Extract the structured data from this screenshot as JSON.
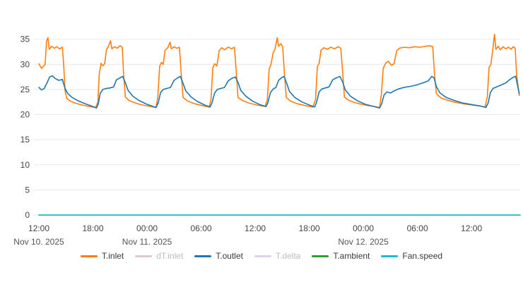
{
  "chart_data": {
    "type": "line",
    "title": "",
    "xlabel": "",
    "ylabel": "",
    "grid": true,
    "legend_position": "bottom",
    "ylim": [
      0,
      40
    ],
    "xlim": [
      0,
      53.4
    ],
    "yticks": [
      0,
      5,
      10,
      15,
      20,
      25,
      30,
      35
    ],
    "xticks": [
      {
        "t": 0,
        "label": "12:00"
      },
      {
        "t": 6,
        "label": "18:00"
      },
      {
        "t": 12,
        "label": "00:00"
      },
      {
        "t": 18,
        "label": "06:00"
      },
      {
        "t": 24,
        "label": "12:00"
      },
      {
        "t": 30,
        "label": "18:00"
      },
      {
        "t": 36,
        "label": "00:00"
      },
      {
        "t": 42,
        "label": "06:00"
      },
      {
        "t": 48,
        "label": "12:00"
      }
    ],
    "date_labels": [
      {
        "t": 0,
        "label": "Nov 10. 2025"
      },
      {
        "t": 12,
        "label": "Nov 11. 2025"
      },
      {
        "t": 36,
        "label": "Nov 12. 2025"
      }
    ],
    "colors": {
      "background": "#ffffff",
      "grid": "#e9e9e9",
      "tick_text": "#454545",
      "date_text": "#555555",
      "legend_text": "#3a3a3a",
      "legend_text_disabled": "#bcbcbc"
    },
    "series": [
      {
        "name": "T.inlet",
        "color": "#ff7f0e",
        "enabled": true,
        "points": [
          [
            0,
            30.1
          ],
          [
            0.3,
            29.2
          ],
          [
            0.5,
            29.6
          ],
          [
            0.7,
            30.0
          ],
          [
            0.85,
            34.6
          ],
          [
            1.0,
            35.3
          ],
          [
            1.15,
            33.0
          ],
          [
            1.4,
            33.6
          ],
          [
            1.7,
            33.2
          ],
          [
            2.0,
            33.5
          ],
          [
            2.3,
            33.1
          ],
          [
            2.6,
            33.4
          ],
          [
            2.75,
            30.0
          ],
          [
            2.9,
            24.8
          ],
          [
            3.1,
            23.2
          ],
          [
            3.5,
            22.7
          ],
          [
            4.0,
            22.3
          ],
          [
            4.8,
            21.9
          ],
          [
            5.6,
            21.6
          ],
          [
            6.3,
            21.4
          ],
          [
            6.55,
            22.5
          ],
          [
            6.7,
            28.0
          ],
          [
            6.9,
            30.2
          ],
          [
            7.1,
            29.7
          ],
          [
            7.3,
            30.1
          ],
          [
            7.5,
            32.9
          ],
          [
            7.7,
            33.5
          ],
          [
            7.95,
            34.7
          ],
          [
            8.1,
            33.1
          ],
          [
            8.4,
            33.5
          ],
          [
            8.7,
            33.2
          ],
          [
            9.0,
            33.7
          ],
          [
            9.25,
            33.4
          ],
          [
            9.4,
            28.0
          ],
          [
            9.6,
            23.5
          ],
          [
            10.0,
            22.8
          ],
          [
            10.7,
            22.3
          ],
          [
            11.5,
            21.9
          ],
          [
            12.4,
            21.6
          ],
          [
            13.0,
            21.4
          ],
          [
            13.2,
            23.5
          ],
          [
            13.4,
            29.6
          ],
          [
            13.6,
            30.4
          ],
          [
            13.8,
            30.0
          ],
          [
            14.0,
            32.8
          ],
          [
            14.3,
            33.3
          ],
          [
            14.55,
            34.4
          ],
          [
            14.7,
            33.1
          ],
          [
            15.0,
            33.5
          ],
          [
            15.3,
            33.2
          ],
          [
            15.6,
            33.4
          ],
          [
            15.8,
            28.0
          ],
          [
            16.0,
            23.4
          ],
          [
            16.5,
            22.7
          ],
          [
            17.2,
            22.2
          ],
          [
            18.1,
            21.8
          ],
          [
            18.9,
            21.5
          ],
          [
            19.1,
            23.0
          ],
          [
            19.3,
            29.3
          ],
          [
            19.5,
            30.1
          ],
          [
            19.75,
            29.7
          ],
          [
            20.0,
            32.7
          ],
          [
            20.3,
            33.3
          ],
          [
            20.6,
            32.9
          ],
          [
            21.0,
            33.4
          ],
          [
            21.4,
            33.1
          ],
          [
            21.7,
            33.4
          ],
          [
            21.9,
            28.5
          ],
          [
            22.1,
            23.4
          ],
          [
            22.6,
            22.8
          ],
          [
            23.3,
            22.3
          ],
          [
            24.2,
            21.9
          ],
          [
            25.1,
            21.6
          ],
          [
            25.35,
            23.0
          ],
          [
            25.55,
            29.0
          ],
          [
            25.75,
            30.0
          ],
          [
            26.0,
            32.4
          ],
          [
            26.2,
            33.0
          ],
          [
            26.45,
            35.3
          ],
          [
            26.6,
            33.6
          ],
          [
            26.85,
            34.1
          ],
          [
            27.05,
            33.5
          ],
          [
            27.25,
            28.0
          ],
          [
            27.45,
            23.4
          ],
          [
            27.9,
            22.7
          ],
          [
            28.6,
            22.2
          ],
          [
            29.5,
            21.8
          ],
          [
            30.4,
            21.5
          ],
          [
            30.7,
            23.0
          ],
          [
            30.9,
            29.6
          ],
          [
            31.1,
            30.2
          ],
          [
            31.3,
            32.8
          ],
          [
            31.6,
            33.3
          ],
          [
            32.0,
            33.0
          ],
          [
            32.4,
            33.4
          ],
          [
            32.8,
            33.1
          ],
          [
            33.2,
            33.5
          ],
          [
            33.5,
            33.2
          ],
          [
            33.7,
            28.5
          ],
          [
            33.9,
            23.5
          ],
          [
            34.4,
            22.8
          ],
          [
            35.2,
            22.3
          ],
          [
            36.2,
            21.9
          ],
          [
            37.2,
            21.6
          ],
          [
            37.8,
            21.4
          ],
          [
            38.0,
            24.0
          ],
          [
            38.2,
            29.2
          ],
          [
            38.5,
            30.3
          ],
          [
            38.8,
            30.6
          ],
          [
            39.1,
            29.8
          ],
          [
            39.4,
            30.1
          ],
          [
            39.7,
            32.7
          ],
          [
            40.0,
            33.2
          ],
          [
            40.5,
            33.4
          ],
          [
            41.1,
            33.3
          ],
          [
            41.7,
            33.5
          ],
          [
            42.3,
            33.4
          ],
          [
            42.9,
            33.6
          ],
          [
            43.4,
            33.7
          ],
          [
            43.7,
            33.5
          ],
          [
            43.9,
            28.0
          ],
          [
            44.1,
            24.2
          ],
          [
            44.6,
            23.3
          ],
          [
            45.4,
            22.8
          ],
          [
            46.3,
            22.4
          ],
          [
            47.2,
            22.1
          ],
          [
            48.1,
            21.9
          ],
          [
            49.0,
            21.7
          ],
          [
            49.5,
            21.5
          ],
          [
            49.75,
            23.5
          ],
          [
            49.95,
            29.4
          ],
          [
            50.15,
            30.0
          ],
          [
            50.35,
            32.8
          ],
          [
            50.55,
            36.0
          ],
          [
            50.7,
            33.0
          ],
          [
            50.95,
            33.6
          ],
          [
            51.2,
            32.9
          ],
          [
            51.5,
            33.5
          ],
          [
            51.8,
            33.1
          ],
          [
            52.1,
            33.4
          ],
          [
            52.4,
            33.0
          ],
          [
            52.65,
            33.5
          ],
          [
            52.85,
            33.2
          ],
          [
            53.0,
            28.0
          ],
          [
            53.3,
            23.8
          ]
        ]
      },
      {
        "name": "dT.inlet",
        "color": "#8c564b",
        "enabled": false,
        "points": []
      },
      {
        "name": "T.outlet",
        "color": "#1f77b4",
        "enabled": true,
        "points": [
          [
            0,
            25.4
          ],
          [
            0.3,
            24.9
          ],
          [
            0.6,
            25.2
          ],
          [
            0.9,
            26.3
          ],
          [
            1.2,
            27.5
          ],
          [
            1.5,
            27.7
          ],
          [
            1.8,
            27.2
          ],
          [
            2.2,
            26.8
          ],
          [
            2.6,
            27.0
          ],
          [
            2.9,
            25.2
          ],
          [
            3.2,
            24.2
          ],
          [
            3.7,
            23.4
          ],
          [
            4.4,
            22.7
          ],
          [
            5.2,
            22.1
          ],
          [
            6.0,
            21.6
          ],
          [
            6.4,
            21.3
          ],
          [
            6.6,
            22.2
          ],
          [
            6.8,
            24.2
          ],
          [
            7.1,
            25.0
          ],
          [
            7.5,
            25.2
          ],
          [
            7.9,
            25.3
          ],
          [
            8.3,
            25.5
          ],
          [
            8.6,
            26.9
          ],
          [
            9.0,
            27.3
          ],
          [
            9.3,
            27.6
          ],
          [
            9.6,
            26.3
          ],
          [
            9.9,
            24.8
          ],
          [
            10.4,
            23.7
          ],
          [
            11.1,
            22.8
          ],
          [
            11.9,
            22.1
          ],
          [
            12.7,
            21.6
          ],
          [
            13.0,
            21.4
          ],
          [
            13.25,
            22.4
          ],
          [
            13.5,
            24.4
          ],
          [
            13.8,
            25.0
          ],
          [
            14.2,
            25.2
          ],
          [
            14.6,
            25.4
          ],
          [
            15.0,
            26.8
          ],
          [
            15.4,
            27.3
          ],
          [
            15.7,
            27.6
          ],
          [
            16.0,
            26.2
          ],
          [
            16.3,
            24.7
          ],
          [
            16.9,
            23.5
          ],
          [
            17.6,
            22.6
          ],
          [
            18.4,
            21.9
          ],
          [
            19.0,
            21.5
          ],
          [
            19.2,
            22.3
          ],
          [
            19.5,
            24.3
          ],
          [
            19.8,
            25.0
          ],
          [
            20.2,
            25.2
          ],
          [
            20.6,
            25.4
          ],
          [
            21.0,
            26.7
          ],
          [
            21.4,
            27.2
          ],
          [
            21.8,
            27.5
          ],
          [
            22.1,
            26.4
          ],
          [
            22.4,
            24.8
          ],
          [
            23.0,
            23.6
          ],
          [
            23.7,
            22.7
          ],
          [
            24.5,
            22.0
          ],
          [
            25.2,
            21.6
          ],
          [
            25.4,
            22.3
          ],
          [
            25.7,
            24.4
          ],
          [
            26.0,
            25.1
          ],
          [
            26.3,
            25.4
          ],
          [
            26.6,
            26.8
          ],
          [
            26.9,
            27.3
          ],
          [
            27.2,
            27.6
          ],
          [
            27.5,
            26.2
          ],
          [
            27.8,
            24.6
          ],
          [
            28.4,
            23.4
          ],
          [
            29.2,
            22.5
          ],
          [
            30.0,
            21.9
          ],
          [
            30.6,
            21.5
          ],
          [
            30.8,
            22.4
          ],
          [
            31.1,
            24.5
          ],
          [
            31.4,
            25.1
          ],
          [
            31.8,
            25.3
          ],
          [
            32.2,
            25.5
          ],
          [
            32.6,
            26.9
          ],
          [
            33.0,
            27.3
          ],
          [
            33.4,
            27.6
          ],
          [
            33.7,
            26.5
          ],
          [
            34.0,
            24.9
          ],
          [
            34.6,
            23.6
          ],
          [
            35.4,
            22.7
          ],
          [
            36.3,
            22.0
          ],
          [
            37.2,
            21.6
          ],
          [
            37.8,
            21.3
          ],
          [
            38.05,
            22.2
          ],
          [
            38.3,
            23.9
          ],
          [
            38.6,
            24.5
          ],
          [
            39.0,
            24.3
          ],
          [
            39.4,
            24.7
          ],
          [
            39.9,
            25.1
          ],
          [
            40.5,
            25.4
          ],
          [
            41.2,
            25.6
          ],
          [
            41.9,
            25.9
          ],
          [
            42.6,
            26.3
          ],
          [
            43.2,
            26.7
          ],
          [
            43.6,
            27.6
          ],
          [
            43.85,
            27.3
          ],
          [
            44.1,
            25.6
          ],
          [
            44.5,
            24.3
          ],
          [
            45.2,
            23.4
          ],
          [
            46.1,
            22.8
          ],
          [
            47.0,
            22.3
          ],
          [
            48.0,
            22.0
          ],
          [
            49.0,
            21.7
          ],
          [
            49.6,
            21.4
          ],
          [
            49.85,
            22.3
          ],
          [
            50.1,
            24.4
          ],
          [
            50.4,
            25.2
          ],
          [
            50.8,
            25.5
          ],
          [
            51.3,
            25.9
          ],
          [
            51.8,
            26.3
          ],
          [
            52.2,
            26.9
          ],
          [
            52.6,
            27.4
          ],
          [
            52.9,
            27.6
          ],
          [
            53.3,
            24.2
          ]
        ]
      },
      {
        "name": "T.delta",
        "color": "#9467bd",
        "enabled": false,
        "points": []
      },
      {
        "name": "T.ambient",
        "color": "#2ca02c",
        "enabled": true,
        "points": [
          [
            0,
            0
          ],
          [
            53.4,
            0
          ]
        ]
      },
      {
        "name": "Fan.speed",
        "color": "#17becf",
        "enabled": true,
        "points": [
          [
            0,
            0
          ],
          [
            53.4,
            0
          ]
        ]
      }
    ]
  }
}
